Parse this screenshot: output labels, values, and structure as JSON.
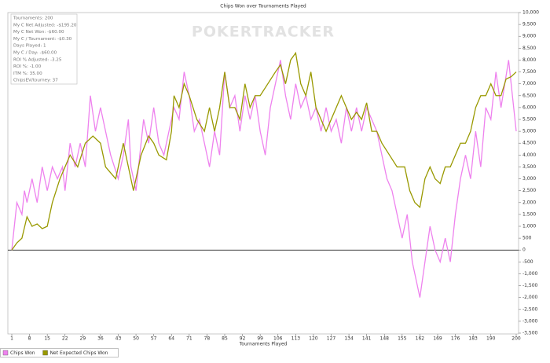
{
  "chart_data": {
    "type": "line",
    "title": "Chips Won over Tournaments Played",
    "x_label": "Tournaments Played",
    "watermark": "POKERTRACKER",
    "stats": [
      "Tournaments: 200",
      "My C Net Adjusted: -$195.20",
      "My C Net Won: -$60.00",
      "My C / Tournament: -$0.30",
      "Days Played: 1",
      "My C / Day: -$60.00",
      "ROI % Adjusted: -3.25",
      "ROI %: -1.00",
      "ITM %: 35.00",
      "ChipsEV/tourney: 37"
    ],
    "xlim": [
      1,
      200
    ],
    "xticks": [
      1,
      8,
      15,
      22,
      29,
      36,
      43,
      50,
      57,
      64,
      71,
      78,
      85,
      92,
      99,
      106,
      113,
      120,
      127,
      134,
      141,
      148,
      155,
      162,
      169,
      176,
      183,
      190,
      200
    ],
    "ylim": [
      -3500,
      10000
    ],
    "yticks": [
      -3500,
      -3000,
      -2500,
      -2000,
      -1500,
      -1000,
      -500,
      0,
      500,
      1000,
      1500,
      2000,
      2500,
      3000,
      3500,
      4000,
      4500,
      5000,
      5500,
      6000,
      6500,
      7000,
      7500,
      8000,
      8500,
      9000,
      9500,
      10000
    ],
    "ytick_labels": [
      "-3,500",
      "-3,000",
      "-2,500",
      "-2,000",
      "-1,500",
      "-1,000",
      "-500",
      "0",
      "500",
      "1,000",
      "1,500",
      "2,000",
      "2,500",
      "3,000",
      "3,500",
      "4,000",
      "4,500",
      "5,000",
      "5,500",
      "6,000",
      "6,500",
      "7,000",
      "7,500",
      "8,000",
      "8,500",
      "9,000",
      "9,500",
      "10,000"
    ],
    "legend": "bottom-left",
    "series": [
      {
        "name": "Chips Won",
        "color": "#ee82ee",
        "x": [
          1,
          3,
          5,
          6,
          7,
          9,
          11,
          13,
          15,
          17,
          19,
          21,
          22,
          24,
          26,
          28,
          30,
          32,
          34,
          36,
          38,
          40,
          43,
          45,
          47,
          48,
          50,
          53,
          55,
          57,
          59,
          61,
          63,
          65,
          67,
          69,
          71,
          73,
          75,
          77,
          79,
          81,
          83,
          85,
          87,
          89,
          91,
          93,
          95,
          97,
          99,
          101,
          103,
          105,
          107,
          109,
          111,
          113,
          115,
          117,
          119,
          121,
          123,
          125,
          127,
          129,
          131,
          133,
          135,
          137,
          139,
          141,
          143,
          145,
          147,
          149,
          151,
          153,
          155,
          157,
          159,
          162,
          166,
          168,
          170,
          172,
          174,
          176,
          178,
          180,
          182,
          184,
          186,
          188,
          190,
          192,
          194,
          197,
          200
        ],
        "values": [
          0,
          2000,
          1500,
          2500,
          2000,
          3000,
          2000,
          3500,
          2500,
          3500,
          3000,
          3500,
          2500,
          4500,
          3500,
          4500,
          3500,
          6500,
          5000,
          6000,
          5000,
          4000,
          3000,
          4000,
          5500,
          3500,
          2500,
          5500,
          4500,
          6000,
          4500,
          4000,
          5000,
          6000,
          5500,
          7500,
          6500,
          5000,
          5500,
          4500,
          3500,
          5000,
          4000,
          7500,
          6000,
          6500,
          5000,
          6500,
          5500,
          6500,
          5000,
          4000,
          6000,
          7000,
          8000,
          6500,
          5500,
          7000,
          6000,
          6500,
          5500,
          6000,
          5000,
          6000,
          5000,
          5500,
          4500,
          6000,
          5000,
          6000,
          5000,
          6000,
          5500,
          5000,
          4000,
          3000,
          2500,
          1500,
          500,
          1500,
          -500,
          -2000,
          1000,
          0,
          -500,
          500,
          -500,
          1500,
          3000,
          4000,
          3000,
          5000,
          3500,
          6000,
          5500,
          7500,
          6000,
          8000,
          5000
        ]
      },
      {
        "name": "Net Expected Chips Won",
        "color": "#999900",
        "x": [
          1,
          3,
          5,
          7,
          9,
          11,
          13,
          15,
          17,
          20,
          22,
          24,
          27,
          30,
          33,
          36,
          38,
          42,
          45,
          49,
          52,
          55,
          57,
          59,
          62,
          64,
          65,
          67,
          69,
          71,
          74,
          77,
          79,
          81,
          83,
          85,
          87,
          89,
          91,
          93,
          95,
          97,
          99,
          102,
          105,
          107,
          109,
          111,
          113,
          115,
          117,
          119,
          121,
          123,
          125,
          127,
          129,
          131,
          133,
          135,
          137,
          139,
          141,
          143,
          145,
          147,
          150,
          153,
          156,
          158,
          160,
          162,
          164,
          166,
          168,
          170,
          172,
          174,
          176,
          178,
          180,
          182,
          184,
          186,
          188,
          190,
          192,
          194,
          196,
          198,
          200
        ],
        "values": [
          0,
          300,
          500,
          1400,
          1000,
          1100,
          900,
          1000,
          2000,
          3000,
          3500,
          4000,
          3500,
          4500,
          4800,
          4500,
          3500,
          3000,
          4500,
          2500,
          4000,
          4800,
          4500,
          4000,
          3800,
          5000,
          6500,
          6000,
          7000,
          6500,
          5500,
          5000,
          6000,
          5000,
          6000,
          7500,
          6000,
          6000,
          5500,
          7000,
          6000,
          6500,
          6500,
          7000,
          7500,
          7800,
          7000,
          8000,
          8300,
          7000,
          6500,
          7500,
          6000,
          5500,
          5000,
          5500,
          6000,
          6500,
          6000,
          5500,
          5800,
          5500,
          6200,
          5000,
          5000,
          4500,
          4000,
          3500,
          3500,
          2500,
          2000,
          1800,
          3000,
          3500,
          3000,
          2800,
          3500,
          3500,
          4000,
          4500,
          4500,
          5000,
          6000,
          6500,
          6500,
          7000,
          6500,
          6500,
          7200,
          7300,
          7500
        ]
      }
    ]
  }
}
